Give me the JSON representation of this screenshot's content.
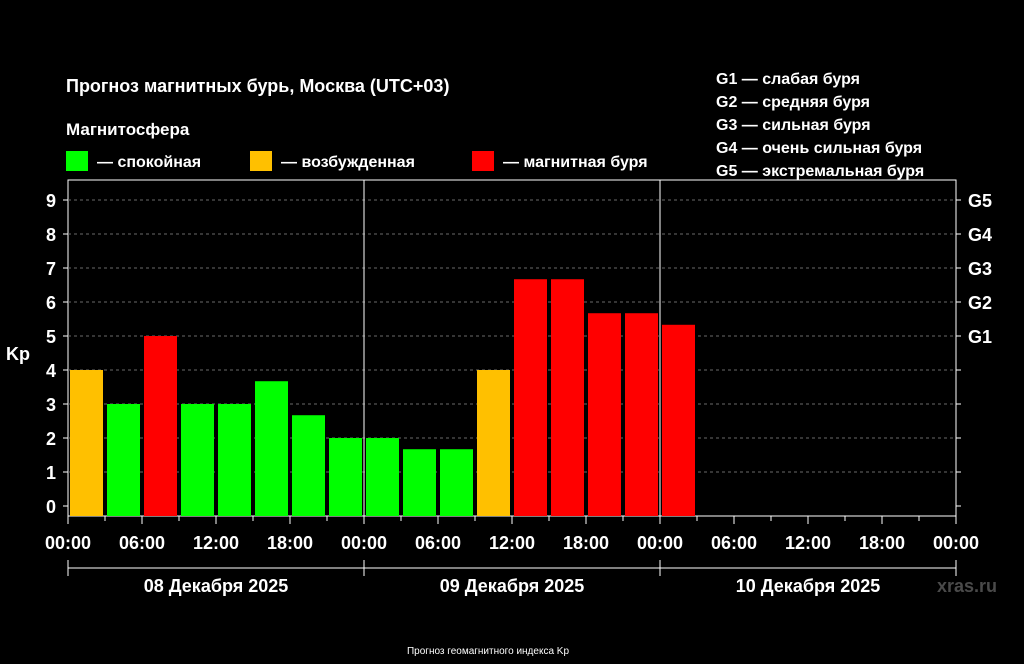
{
  "chart_data": {
    "type": "bar",
    "title": "Прогноз магнитных бурь, Москва (UTC+03)",
    "ylabel": "Kp",
    "ylim": [
      0,
      9
    ],
    "yticks": [
      "0",
      "1",
      "2",
      "3",
      "4",
      "5",
      "6",
      "7",
      "8",
      "9"
    ],
    "right_ticks": [
      {
        "value": 5,
        "label": "G1"
      },
      {
        "value": 6,
        "label": "G2"
      },
      {
        "value": 7,
        "label": "G3"
      },
      {
        "value": 8,
        "label": "G4"
      },
      {
        "value": 9,
        "label": "G5"
      }
    ],
    "x_tick_labels": [
      "00:00",
      "06:00",
      "12:00",
      "18:00",
      "00:00",
      "06:00",
      "12:00",
      "18:00",
      "00:00",
      "06:00",
      "12:00",
      "18:00",
      "00:00"
    ],
    "days": [
      "08 Декабря 2025",
      "09 Декабря 2025",
      "10 Декабря 2025"
    ],
    "interval_hours": 3,
    "values": [
      4,
      3,
      5,
      3,
      3,
      3.67,
      2.67,
      2,
      2,
      1.67,
      1.67,
      4,
      6.67,
      6.67,
      5.67,
      5.67,
      5.33
    ],
    "levels": [
      "disturbed",
      "quiet",
      "storm",
      "quiet",
      "quiet",
      "quiet",
      "quiet",
      "quiet",
      "quiet",
      "quiet",
      "quiet",
      "disturbed",
      "storm",
      "storm",
      "storm",
      "storm",
      "storm"
    ],
    "legend_title": "Магнитосфера",
    "legend": [
      {
        "key": "quiet",
        "label": "— спокойная",
        "color": "#00ff00"
      },
      {
        "key": "disturbed",
        "label": "— возбужденная",
        "color": "#ffc000"
      },
      {
        "key": "storm",
        "label": "— магнитная буря",
        "color": "#ff0000"
      }
    ],
    "g_scale": [
      "G1 — слабая буря",
      "G2 — средняя буря",
      "G3 — сильная буря",
      "G4 — очень сильная буря",
      "G5 — экстремальная буря"
    ],
    "grid": true
  },
  "watermark": "xras.ru",
  "caption": "Прогноз геомагнитного индекса Kp"
}
